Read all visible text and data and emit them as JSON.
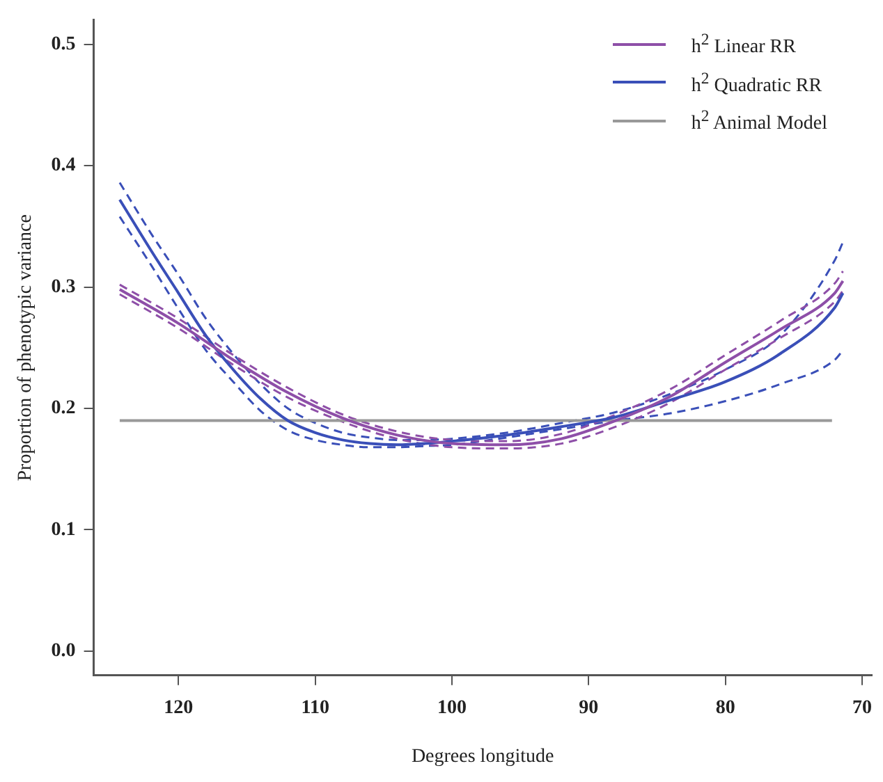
{
  "chart_data": {
    "type": "line",
    "xlabel": "Degrees longitude",
    "ylabel": "Proportion of phenotypic variance",
    "xlim": [
      126.2,
      69.3
    ],
    "xticks": [
      120,
      110,
      100,
      90,
      80,
      70
    ],
    "ylim": [
      -0.02,
      0.52
    ],
    "yticks": [
      {
        "value": 0,
        "label": "0.0"
      },
      0.1,
      0.2,
      0.3,
      0.4,
      0.5
    ],
    "grid": false,
    "legend": "top right",
    "marker": "none",
    "series": [
      {
        "name": "h$^{2}$ Linear RR",
        "color": "#8e4fa8",
        "x": [
          124.3,
          120,
          116,
          112,
          108,
          104,
          100,
          96,
          92,
          88,
          84,
          80,
          76,
          72,
          71.4
        ],
        "values": [
          0.298,
          0.27,
          0.24,
          0.213,
          0.192,
          0.178,
          0.171,
          0.17,
          0.175,
          0.19,
          0.21,
          0.238,
          0.265,
          0.295,
          0.305
        ]
      },
      {
        "name": "h$^{2}$ Quadratic RR",
        "color": "#3a4fb8",
        "x": [
          124.3,
          122,
          120,
          118,
          116,
          114,
          112,
          110,
          108,
          106,
          104,
          102,
          100,
          96,
          92,
          88,
          84,
          80,
          76,
          72,
          71.4
        ],
        "values": [
          0.372,
          0.33,
          0.295,
          0.26,
          0.232,
          0.208,
          0.19,
          0.18,
          0.174,
          0.171,
          0.17,
          0.171,
          0.173,
          0.178,
          0.185,
          0.193,
          0.207,
          0.222,
          0.245,
          0.283,
          0.295
        ]
      },
      {
        "name": "h$^{2}$ Animal Model",
        "color": "#999999",
        "x": [
          124.3,
          72.2
        ],
        "values": [
          0.19,
          0.19
        ]
      },
      {
        "color": "#8e4fa8",
        "line_style": "dashed",
        "x": [
          124.3,
          120,
          116,
          112,
          108,
          104,
          100,
          96,
          92,
          88,
          84,
          80,
          76,
          72,
          71.4
        ],
        "values": [
          0.294,
          0.266,
          0.236,
          0.209,
          0.189,
          0.175,
          0.168,
          0.167,
          0.171,
          0.185,
          0.205,
          0.232,
          0.258,
          0.288,
          0.297
        ]
      },
      {
        "color": "#8e4fa8",
        "line_style": "dashed",
        "x": [
          124.3,
          120,
          116,
          112,
          108,
          104,
          100,
          96,
          92,
          88,
          84,
          80,
          76,
          72,
          71.4
        ],
        "values": [
          0.302,
          0.274,
          0.244,
          0.217,
          0.195,
          0.181,
          0.174,
          0.173,
          0.179,
          0.195,
          0.216,
          0.244,
          0.272,
          0.303,
          0.313
        ]
      },
      {
        "color": "#3a4fb8",
        "line_style": "dashed",
        "x": [
          124.3,
          122,
          120,
          118,
          116,
          114,
          112,
          110,
          108,
          106,
          104,
          102,
          100,
          96,
          92,
          88,
          84,
          80,
          76,
          72,
          71.4
        ],
        "values": [
          0.358,
          0.318,
          0.282,
          0.248,
          0.222,
          0.198,
          0.182,
          0.174,
          0.17,
          0.168,
          0.168,
          0.169,
          0.17,
          0.176,
          0.183,
          0.19,
          0.196,
          0.206,
          0.22,
          0.24,
          0.248
        ]
      },
      {
        "color": "#3a4fb8",
        "line_style": "dashed",
        "x": [
          124.3,
          122,
          120,
          118,
          116,
          114,
          112,
          110,
          108,
          106,
          104,
          102,
          100,
          96,
          92,
          88,
          84,
          80,
          76,
          72,
          71.4
        ],
        "values": [
          0.386,
          0.344,
          0.31,
          0.274,
          0.245,
          0.22,
          0.2,
          0.188,
          0.18,
          0.176,
          0.174,
          0.174,
          0.175,
          0.18,
          0.188,
          0.197,
          0.212,
          0.232,
          0.26,
          0.322,
          0.337
        ]
      }
    ]
  }
}
